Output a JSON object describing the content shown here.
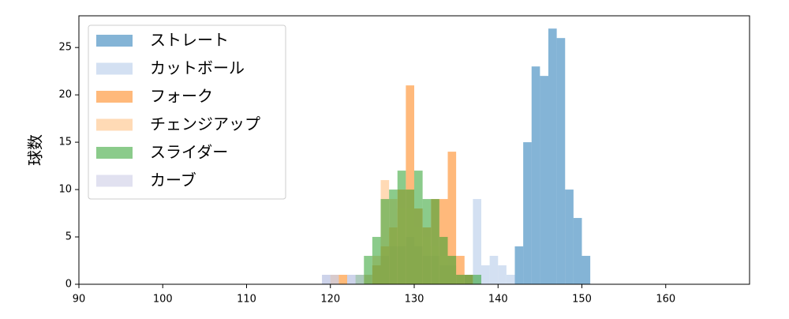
{
  "chart_data": {
    "type": "histogram",
    "ylabel": "球数",
    "xlim": [
      90,
      170
    ],
    "ylim": [
      0,
      28.35
    ],
    "xticks": [
      90,
      100,
      110,
      120,
      130,
      140,
      150,
      160
    ],
    "yticks": [
      0,
      5,
      10,
      15,
      20,
      25
    ],
    "alpha": 0.55,
    "legend": "upper left",
    "series": [
      {
        "name": "ストレート",
        "color": "#1f77b4",
        "bins": [
          142,
          143,
          144,
          145,
          146,
          147,
          148,
          149,
          150,
          151
        ],
        "values": [
          4,
          15,
          23,
          22,
          27,
          26,
          10,
          7,
          3
        ]
      },
      {
        "name": "カットボール",
        "color": "#aec7e8",
        "bins": [
          119,
          120,
          121,
          122,
          123,
          124,
          125,
          126,
          127,
          128,
          129,
          130,
          131,
          132,
          133,
          134,
          135,
          136,
          137,
          138,
          139,
          140,
          141,
          142
        ],
        "values": [
          1,
          1,
          0,
          1,
          0,
          1,
          2,
          3,
          4,
          4,
          5,
          4,
          3,
          3,
          2,
          2,
          1,
          1,
          9,
          2,
          3,
          2,
          1
        ]
      },
      {
        "name": "フォーク",
        "color": "#ff7f0e",
        "bins": [
          121,
          122,
          123,
          124,
          125,
          126,
          127,
          128,
          129,
          130,
          131,
          132,
          133,
          134,
          135,
          136,
          137
        ],
        "values": [
          1,
          0,
          0,
          0,
          2,
          4,
          6,
          10,
          21,
          8,
          6,
          9,
          9,
          14,
          3,
          1
        ]
      },
      {
        "name": "チェンジアップ",
        "color": "#ffbb78",
        "bins": [
          120,
          121,
          122,
          123,
          124,
          125,
          126,
          127,
          128,
          129,
          130,
          131,
          132,
          133,
          134,
          135,
          136
        ],
        "values": [
          1,
          1,
          0,
          0,
          1,
          3,
          11,
          9,
          8,
          8,
          6,
          5,
          4,
          3,
          2,
          1
        ]
      },
      {
        "name": "スライダー",
        "color": "#2ca02c",
        "bins": [
          123,
          124,
          125,
          126,
          127,
          128,
          129,
          130,
          131,
          132,
          133,
          134,
          135,
          136,
          137,
          138
        ],
        "values": [
          1,
          3,
          5,
          9,
          10,
          12,
          10,
          12,
          9,
          9,
          5,
          3,
          1,
          1,
          1
        ]
      },
      {
        "name": "カーブ",
        "color": "#c9c9e4",
        "bins": [
          119,
          120,
          121,
          122,
          123,
          124
        ],
        "values": [
          1,
          1,
          0,
          1,
          1
        ]
      }
    ]
  }
}
